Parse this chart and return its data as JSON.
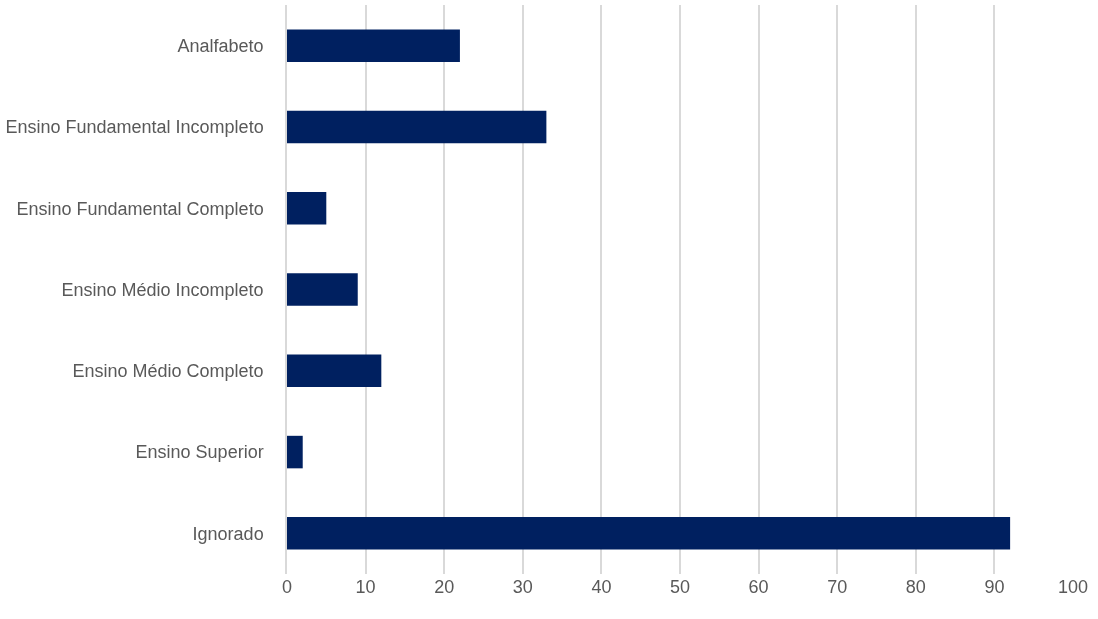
{
  "chart_data": {
    "type": "bar",
    "orientation": "horizontal",
    "categories": [
      "Analfabeto",
      "Ensino Fundamental Incompleto",
      "Ensino Fundamental Completo",
      "Ensino Médio Incompleto",
      "Ensino Médio Completo",
      "Ensino Superior",
      "Ignorado"
    ],
    "values": [
      22,
      33,
      5,
      9,
      12,
      2,
      92
    ],
    "color": "#002060",
    "xlim": [
      0,
      100
    ],
    "xticks": [
      0,
      10,
      20,
      30,
      40,
      50,
      60,
      70,
      80,
      90,
      100
    ],
    "grid": "x"
  }
}
